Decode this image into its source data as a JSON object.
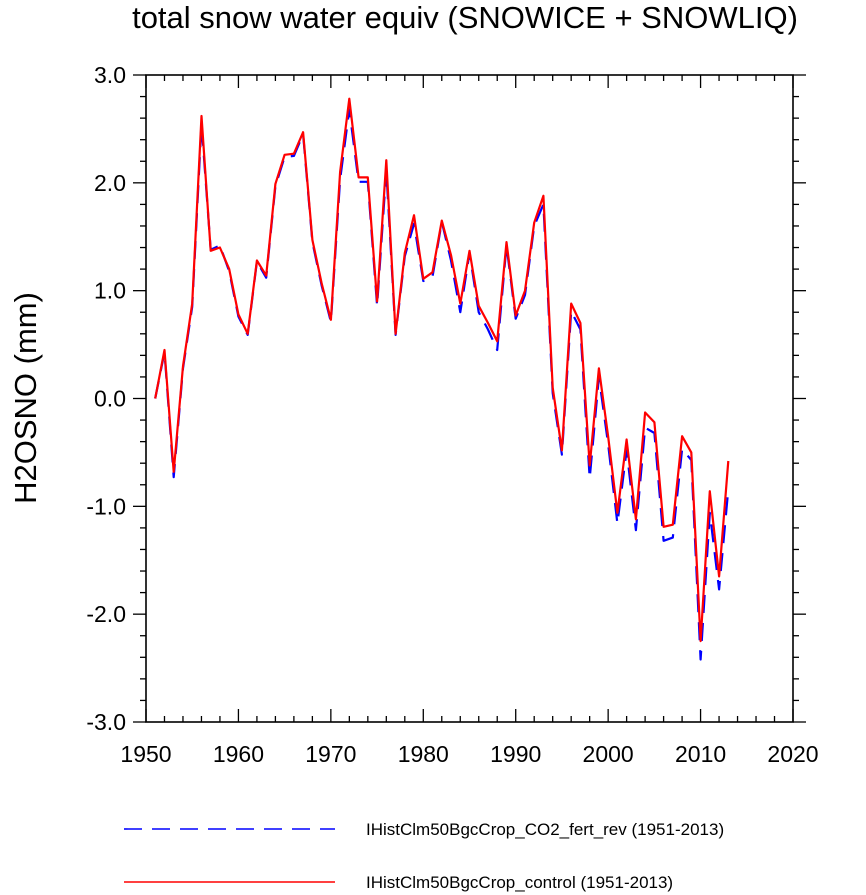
{
  "chart_data": {
    "type": "line",
    "title": "total snow water equiv (SNOWICE + SNOWLIQ)",
    "xlabel": "",
    "ylabel": "H2OSNO  (mm)",
    "xlim": [
      1950,
      2020
    ],
    "ylim": [
      -3.0,
      3.0
    ],
    "x_ticks": [
      1950,
      1960,
      1970,
      1980,
      1990,
      2000,
      2010,
      2020
    ],
    "y_ticks": [
      3.0,
      2.0,
      1.0,
      0.0,
      -1.0,
      -2.0,
      -3.0
    ],
    "x_tick_labels": [
      "1950",
      "1960",
      "1970",
      "1980",
      "1990",
      "2000",
      "2010",
      "2020"
    ],
    "y_tick_labels": [
      "3.0",
      "2.0",
      "1.0",
      "0.0",
      "-1.0",
      "-2.0",
      "-3.0"
    ],
    "x": [
      1951,
      1952,
      1953,
      1954,
      1955,
      1956,
      1957,
      1958,
      1959,
      1960,
      1961,
      1962,
      1963,
      1964,
      1965,
      1966,
      1967,
      1968,
      1969,
      1970,
      1971,
      1972,
      1973,
      1974,
      1975,
      1976,
      1977,
      1978,
      1979,
      1980,
      1981,
      1982,
      1983,
      1984,
      1985,
      1986,
      1987,
      1988,
      1989,
      1990,
      1991,
      1992,
      1993,
      1994,
      1995,
      1996,
      1997,
      1998,
      1999,
      2000,
      2001,
      2002,
      2003,
      2004,
      2005,
      2006,
      2007,
      2008,
      2009,
      2010,
      2011,
      2012,
      2013
    ],
    "series": [
      {
        "name": "IHistClm50BgcCrop_CO2_fert_rev (1951-2013)",
        "color": "#0000ff",
        "dash": "dashed",
        "values": [
          0.0,
          0.43,
          -0.73,
          0.28,
          0.85,
          2.55,
          1.38,
          1.42,
          1.18,
          0.76,
          0.59,
          1.27,
          1.12,
          1.97,
          2.24,
          2.25,
          2.45,
          1.45,
          1.05,
          0.71,
          2.03,
          2.68,
          2.01,
          2.01,
          0.86,
          2.12,
          0.59,
          1.32,
          1.62,
          1.09,
          1.13,
          1.64,
          1.28,
          0.8,
          1.35,
          0.8,
          0.64,
          0.45,
          1.42,
          0.74,
          0.96,
          1.6,
          1.8,
          0.05,
          -0.52,
          0.81,
          0.64,
          -0.74,
          0.2,
          -0.42,
          -1.16,
          -0.48,
          -1.22,
          -0.27,
          -0.32,
          -1.32,
          -1.29,
          -0.47,
          -0.57,
          -2.42,
          -1.06,
          -1.77,
          -0.84
        ]
      },
      {
        "name": "IHistClm50BgcCrop_control (1951-2013)",
        "color": "#ff0000",
        "dash": "solid",
        "values": [
          0.0,
          0.45,
          -0.68,
          0.3,
          0.88,
          2.62,
          1.37,
          1.4,
          1.2,
          0.78,
          0.6,
          1.28,
          1.14,
          1.99,
          2.26,
          2.27,
          2.47,
          1.47,
          1.07,
          0.73,
          2.1,
          2.78,
          2.05,
          2.05,
          0.9,
          2.21,
          0.6,
          1.35,
          1.7,
          1.11,
          1.17,
          1.65,
          1.33,
          0.88,
          1.37,
          0.86,
          0.7,
          0.53,
          1.45,
          0.77,
          1.0,
          1.63,
          1.88,
          0.1,
          -0.48,
          0.88,
          0.7,
          -0.62,
          0.28,
          -0.35,
          -1.06,
          -0.38,
          -1.12,
          -0.13,
          -0.22,
          -1.19,
          -1.17,
          -0.35,
          -0.5,
          -2.25,
          -0.86,
          -1.65,
          -0.58
        ]
      }
    ]
  }
}
